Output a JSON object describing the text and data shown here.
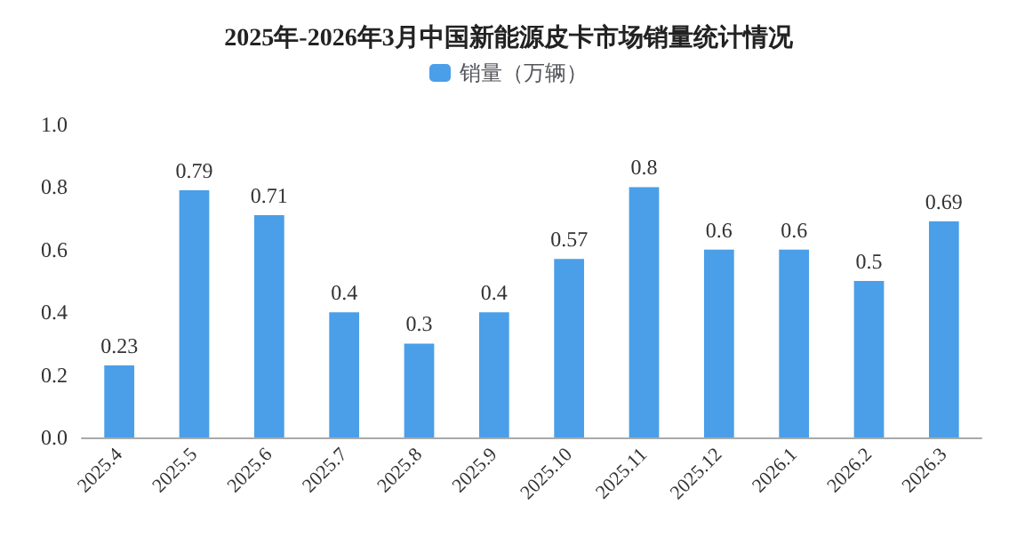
{
  "chart_data": {
    "type": "bar",
    "title": "2025年-2026年3月中国新能源皮卡市场销量统计情况",
    "categories": [
      "2025.4",
      "2025.5",
      "2025.6",
      "2025.7",
      "2025.8",
      "2025.9",
      "2025.10",
      "2025.11",
      "2025.12",
      "2026.1",
      "2026.2",
      "2026.3"
    ],
    "series": [
      {
        "name": "销量（万辆）",
        "color": "#4a9fe8",
        "values": [
          0.23,
          0.79,
          0.71,
          0.4,
          0.3,
          0.4,
          0.57,
          0.8,
          0.6,
          0.6,
          0.5,
          0.69
        ]
      }
    ],
    "ylim": [
      0,
      1
    ],
    "yticks": [
      {
        "value": 0,
        "label": "0.0"
      },
      0.2,
      0.4,
      0.6,
      0.8,
      {
        "value": 1,
        "label": "1.0"
      }
    ],
    "grid": false,
    "legend": "top",
    "data_labels": true
  }
}
